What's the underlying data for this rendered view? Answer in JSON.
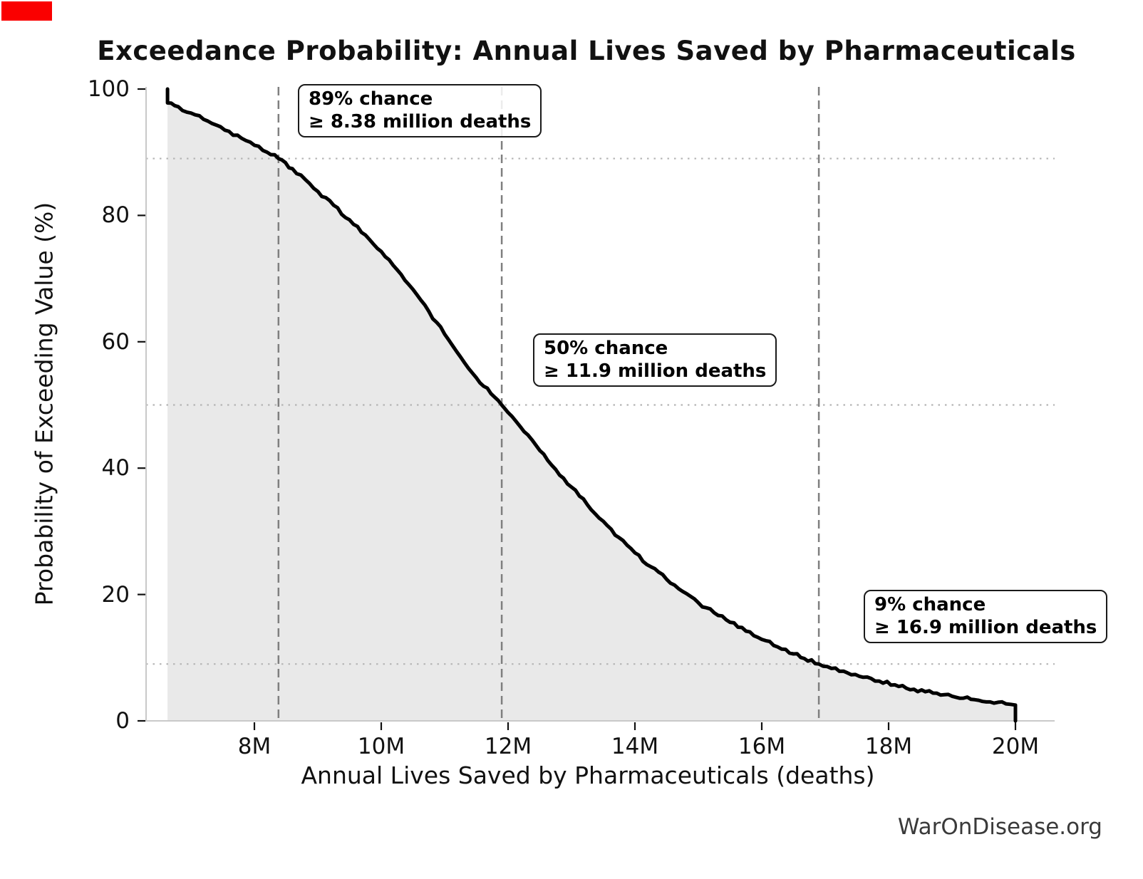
{
  "page": {
    "watermark": "WarOnDisease.org",
    "overlay_marker": {
      "color": "#fa0000"
    }
  },
  "chart_data": {
    "type": "area",
    "title": "Exceedance Probability: Annual Lives Saved by Pharmaceuticals",
    "xlabel": "Annual Lives Saved by Pharmaceuticals (deaths)",
    "ylabel": "Probability of Exceeding Value (%)",
    "x_unit": "million deaths",
    "y_unit": "percent",
    "xlim_millions": [
      6.29,
      20.62
    ],
    "ylim_percent": [
      0,
      100
    ],
    "legend": "none",
    "grid": "dotted horizontal lines at marker probabilities; dashed vertical lines at marker values",
    "x_ticks": [
      {
        "value": 8,
        "label": "8M"
      },
      {
        "value": 10,
        "label": "10M"
      },
      {
        "value": 12,
        "label": "12M"
      },
      {
        "value": 14,
        "label": "14M"
      },
      {
        "value": 16,
        "label": "16M"
      },
      {
        "value": 18,
        "label": "18M"
      },
      {
        "value": 20,
        "label": "20M"
      }
    ],
    "y_ticks": [
      {
        "value": 0,
        "label": "0"
      },
      {
        "value": 20,
        "label": "20"
      },
      {
        "value": 40,
        "label": "40"
      },
      {
        "value": 60,
        "label": "60"
      },
      {
        "value": 80,
        "label": "80"
      },
      {
        "value": 100,
        "label": "100"
      }
    ],
    "markers": [
      {
        "chance_percent": 89,
        "value_millions": 8.38,
        "line1": "89% chance",
        "line2": "≥ 8.38 million deaths"
      },
      {
        "chance_percent": 50,
        "value_millions": 11.9,
        "line1": "50% chance",
        "line2": "≥ 11.9 million deaths"
      },
      {
        "chance_percent": 9,
        "value_millions": 16.9,
        "line1": "9% chance",
        "line2": "≥ 16.9 million deaths"
      }
    ],
    "curve": [
      [
        6.63,
        100
      ],
      [
        6.63,
        97.8
      ],
      [
        6.8,
        97.2
      ],
      [
        7.0,
        96.2
      ],
      [
        7.2,
        95.2
      ],
      [
        7.4,
        94.3
      ],
      [
        7.6,
        93.3
      ],
      [
        7.8,
        92.2
      ],
      [
        8.0,
        91.1
      ],
      [
        8.2,
        90.0
      ],
      [
        8.38,
        89.0
      ],
      [
        8.6,
        87.4
      ],
      [
        8.8,
        85.7
      ],
      [
        9.0,
        83.8
      ],
      [
        9.25,
        81.6
      ],
      [
        9.5,
        79.3
      ],
      [
        9.75,
        76.9
      ],
      [
        10.0,
        74.3
      ],
      [
        10.25,
        71.4
      ],
      [
        10.5,
        68.3
      ],
      [
        10.75,
        64.8
      ],
      [
        11.0,
        61.2
      ],
      [
        11.25,
        57.6
      ],
      [
        11.5,
        54.3
      ],
      [
        11.9,
        50.0
      ],
      [
        12.0,
        48.8
      ],
      [
        12.25,
        45.8
      ],
      [
        12.5,
        42.8
      ],
      [
        12.75,
        39.8
      ],
      [
        13.0,
        37.0
      ],
      [
        13.25,
        34.2
      ],
      [
        13.5,
        31.6
      ],
      [
        13.75,
        29.0
      ],
      [
        14.0,
        26.6
      ],
      [
        14.25,
        24.4
      ],
      [
        14.5,
        22.4
      ],
      [
        14.75,
        20.5
      ],
      [
        15.0,
        18.7
      ],
      [
        15.25,
        17.1
      ],
      [
        15.5,
        15.6
      ],
      [
        15.75,
        14.2
      ],
      [
        16.0,
        12.9
      ],
      [
        16.25,
        11.7
      ],
      [
        16.5,
        10.6
      ],
      [
        16.9,
        9.0
      ],
      [
        17.1,
        8.3
      ],
      [
        17.35,
        7.6
      ],
      [
        17.6,
        6.9
      ],
      [
        17.85,
        6.3
      ],
      [
        18.1,
        5.7
      ],
      [
        18.4,
        5.0
      ],
      [
        18.7,
        4.4
      ],
      [
        19.0,
        3.9
      ],
      [
        19.3,
        3.4
      ],
      [
        19.6,
        3.0
      ],
      [
        19.85,
        2.7
      ],
      [
        20.0,
        2.5
      ],
      [
        20.0,
        0
      ]
    ],
    "watermark": "WarOnDisease.org",
    "colors": {
      "curve": "#000000",
      "fill": "#e9e9e9",
      "dashed_line": "#7f7f7f",
      "dotted_line": "#b5b5b5",
      "spine": "#c9c9c9",
      "tick_mark": "#111111",
      "text": "#111111",
      "watermark_text": "#3a3a3a",
      "annotation_bg": "#ffffff",
      "annotation_border": "#1a1a1a",
      "overlay_red": "#fa0000"
    }
  }
}
